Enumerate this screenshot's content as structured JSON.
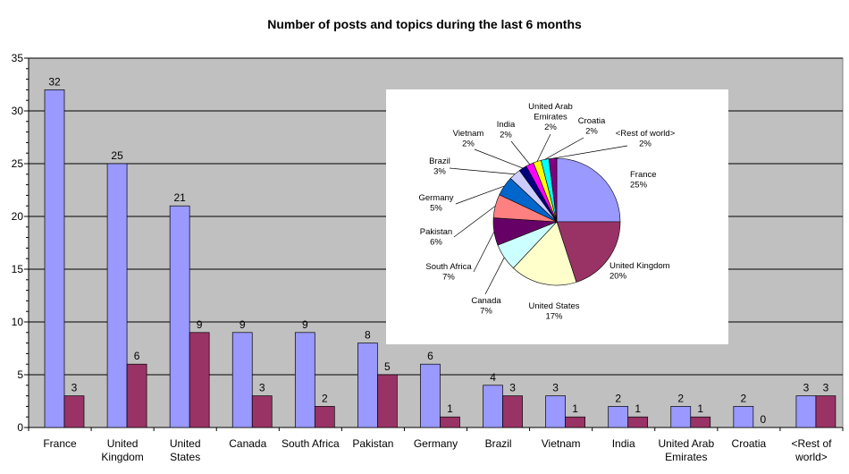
{
  "chart_data": [
    {
      "type": "bar",
      "title": "Number of posts and topics during the last 6 months",
      "xlabel": "",
      "ylabel": "",
      "ylim": [
        0,
        35
      ],
      "yticks": [
        0,
        5,
        10,
        15,
        20,
        25,
        30,
        35
      ],
      "grid": true,
      "categories": [
        [
          "France"
        ],
        [
          "United",
          "Kingdom"
        ],
        [
          "United",
          "States"
        ],
        [
          "Canada"
        ],
        [
          "South Africa"
        ],
        [
          "Pakistan"
        ],
        [
          "Germany"
        ],
        [
          "Brazil"
        ],
        [
          "Vietnam"
        ],
        [
          "India"
        ],
        [
          "United Arab",
          "Emirates"
        ],
        [
          "Croatia"
        ],
        [
          "<Rest of",
          "world>"
        ]
      ],
      "series": [
        {
          "values": [
            32,
            25,
            21,
            9,
            9,
            8,
            6,
            4,
            3,
            2,
            2,
            2,
            3
          ],
          "color": "#9999ff"
        },
        {
          "values": [
            3,
            6,
            9,
            3,
            2,
            5,
            1,
            3,
            1,
            1,
            1,
            0,
            3
          ],
          "color": "#993366"
        }
      ]
    },
    {
      "type": "pie",
      "slices": [
        {
          "label": [
            "France",
            "25%"
          ],
          "value": 25,
          "color": "#9999ff"
        },
        {
          "label": [
            "United Kingdom",
            "20%"
          ],
          "value": 20,
          "color": "#993366"
        },
        {
          "label": [
            "United States",
            "17%"
          ],
          "value": 17,
          "color": "#ffffcc"
        },
        {
          "label": [
            "Canada",
            "7%"
          ],
          "value": 7,
          "color": "#ccffff"
        },
        {
          "label": [
            "South Africa",
            "7%"
          ],
          "value": 7,
          "color": "#660066"
        },
        {
          "label": [
            "Pakistan",
            "6%"
          ],
          "value": 6,
          "color": "#ff8080"
        },
        {
          "label": [
            "Germany",
            "5%"
          ],
          "value": 5,
          "color": "#0066cc"
        },
        {
          "label": [
            "Brazil",
            "3%"
          ],
          "value": 3,
          "color": "#ccccff"
        },
        {
          "label": [
            "Vietnam",
            "2%"
          ],
          "value": 2,
          "color": "#000080"
        },
        {
          "label": [
            "India",
            "2%"
          ],
          "value": 2,
          "color": "#ff00ff"
        },
        {
          "label": [
            "United Arab",
            "Emirates",
            "2%"
          ],
          "value": 2,
          "color": "#ffff00"
        },
        {
          "label": [
            "Croatia",
            "2%"
          ],
          "value": 2,
          "color": "#00ffff"
        },
        {
          "label": [
            "<Rest of world>",
            "2%"
          ],
          "value": 2,
          "color": "#800080"
        }
      ]
    }
  ]
}
